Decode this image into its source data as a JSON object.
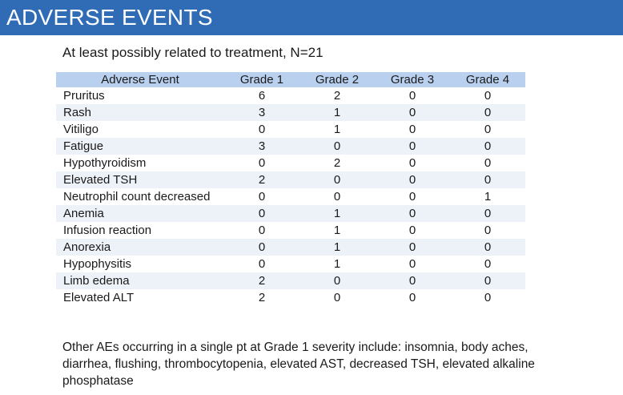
{
  "title": "ADVERSE EVENTS",
  "subtitle": "At least possibly related to treatment, N=21",
  "table": {
    "headers": [
      "Adverse Event",
      "Grade 1",
      "Grade 2",
      "Grade 3",
      "Grade 4"
    ],
    "rows": [
      [
        "Pruritus",
        "6",
        "2",
        "0",
        "0"
      ],
      [
        "Rash",
        "3",
        "1",
        "0",
        "0"
      ],
      [
        "Vitiligo",
        "0",
        "1",
        "0",
        "0"
      ],
      [
        "Fatigue",
        "3",
        "0",
        "0",
        "0"
      ],
      [
        "Hypothyroidism",
        "0",
        "2",
        "0",
        "0"
      ],
      [
        "Elevated TSH",
        "2",
        "0",
        "0",
        "0"
      ],
      [
        "Neutrophil count decreased",
        "0",
        "0",
        "0",
        "1"
      ],
      [
        "Anemia",
        "0",
        "1",
        "0",
        "0"
      ],
      [
        "Infusion reaction",
        "0",
        "1",
        "0",
        "0"
      ],
      [
        "Anorexia",
        "0",
        "1",
        "0",
        "0"
      ],
      [
        "Hypophysitis",
        "0",
        "1",
        "0",
        "0"
      ],
      [
        "Limb edema",
        "2",
        "0",
        "0",
        "0"
      ],
      [
        "Elevated ALT",
        "2",
        "0",
        "0",
        "0"
      ]
    ]
  },
  "footnote": "Other AEs occurring in a single pt at Grade 1 severity include: insomnia, body aches, diarrhea, flushing, thrombocytopenia, elevated AST, decreased TSH, elevated alkaline phosphatase",
  "colors": {
    "title_bar": "#2f6cb5",
    "header_row": "#b9d1ef",
    "alt_row": "#edf1f8"
  }
}
